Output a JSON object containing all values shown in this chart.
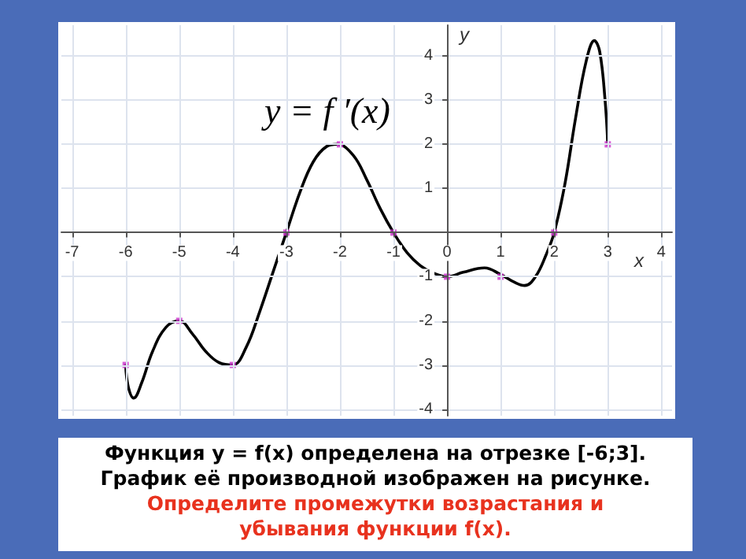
{
  "chart_data": {
    "type": "line",
    "xlabel": "x",
    "ylabel": "y",
    "x": [
      -6,
      -5.95,
      -5.85,
      -5.7,
      -5.5,
      -5.25,
      -5,
      -4.75,
      -4.5,
      -4.25,
      -4,
      -3.75,
      -3.5,
      -3.25,
      -3,
      -2.75,
      -2.5,
      -2.25,
      -2.05,
      -1.75,
      -1.5,
      -1.25,
      -1,
      -0.75,
      -0.5,
      -0.25,
      0,
      0.3,
      0.7,
      1,
      1.25,
      1.45,
      1.65,
      1.85,
      2,
      2.2,
      2.4,
      2.6,
      2.75,
      2.85,
      2.95,
      3
    ],
    "series": [
      {
        "color": "#000000",
        "marker": "none",
        "values": [
          -3,
          -3.5,
          -3.75,
          -3.4,
          -2.7,
          -2.15,
          -2,
          -2.3,
          -2.7,
          -2.95,
          -3,
          -2.6,
          -1.8,
          -0.9,
          0,
          0.9,
          1.6,
          1.95,
          2,
          1.75,
          1.2,
          0.55,
          0,
          -0.45,
          -0.75,
          -0.92,
          -1,
          -0.9,
          -0.8,
          -0.95,
          -1.12,
          -1.2,
          -1.0,
          -0.5,
          0,
          1.1,
          2.6,
          3.9,
          4.35,
          4.1,
          3.0,
          2
        ]
      },
      {
        "type": "scatter",
        "marker": "square",
        "color": "#cc33cc",
        "x": [
          -6,
          -5,
          -4,
          -3,
          -2,
          -1,
          0,
          1,
          2,
          3
        ],
        "values": [
          -3,
          -2,
          -3,
          0,
          2,
          0,
          -1,
          -1,
          0,
          2
        ]
      }
    ],
    "xlim": [
      -7.2,
      4.2
    ],
    "ylim": [
      -4.15,
      4.7
    ],
    "xticks": [
      -7,
      -6,
      -5,
      -4,
      -3,
      -2,
      -1,
      0,
      1,
      2,
      3,
      4
    ],
    "yticks": [
      -4,
      -3,
      -2,
      -1,
      {
        "value": 0,
        "label": null
      },
      1,
      2,
      3,
      4
    ],
    "grid": true,
    "line_style": "solid",
    "annotations": [
      "y = f ′(x)",
      "Функция y = f(x) определена на отрезке [-6;3].",
      "График её производной изображен на рисунке.",
      "Определите промежутки возрастания и убывания функции f(x)."
    ]
  }
}
